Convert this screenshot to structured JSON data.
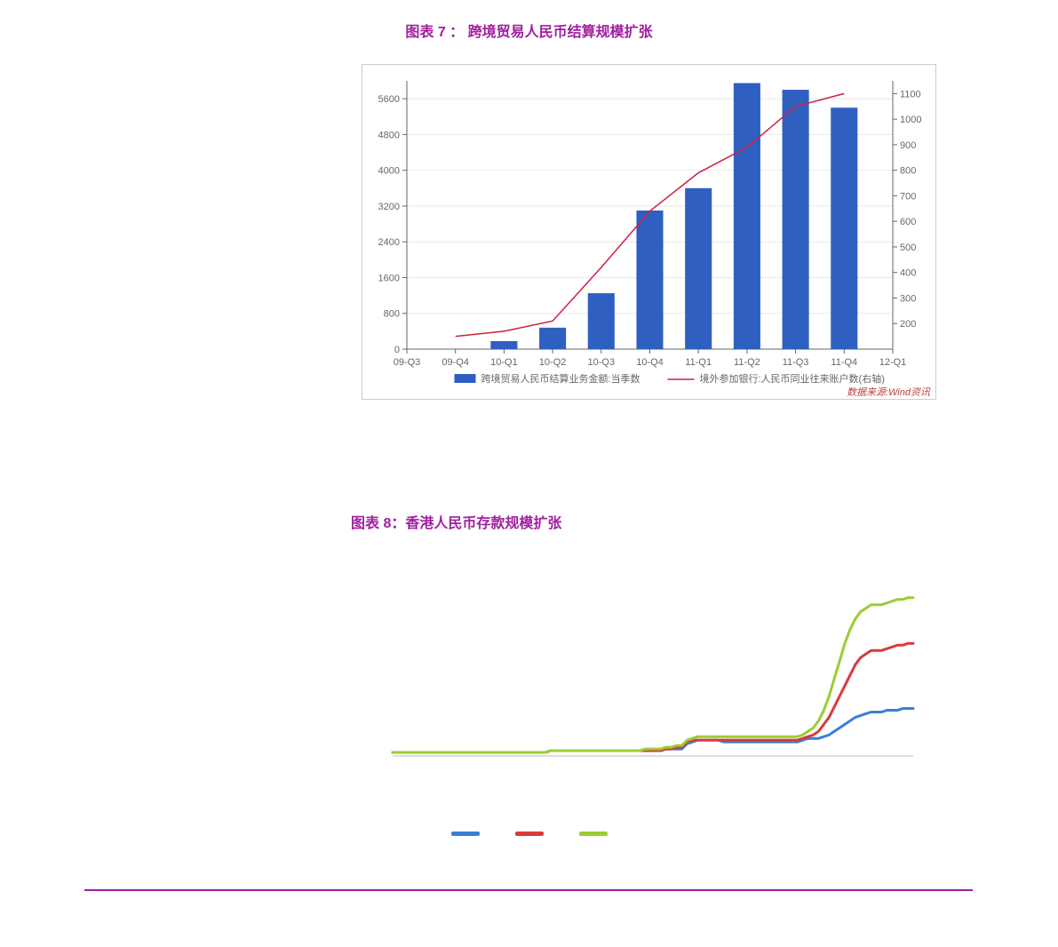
{
  "chart7": {
    "title": "图表 7 ： 跨境贸易人民币结算规模扩张",
    "title_color": "#a020a0",
    "title_fontsize": 16,
    "type": "bar+line",
    "categories": [
      "09-Q3",
      "09-Q4",
      "10-Q1",
      "10-Q2",
      "10-Q3",
      "10-Q4",
      "11-Q1",
      "11-Q2",
      "11-Q3",
      "11-Q4",
      "12-Q1"
    ],
    "bars": {
      "label": "跨境贸易人民币结算业务金额:当季数",
      "color": "#2f5fc0",
      "values": [
        null,
        null,
        180,
        480,
        1250,
        3100,
        3600,
        5950,
        5800,
        5400,
        null
      ],
      "width": 0.55
    },
    "line": {
      "label": "境外参加银行:人民币同业往来账户数(右轴)",
      "color": "#d02040",
      "width": 1.5,
      "values": [
        null,
        150,
        170,
        210,
        420,
        640,
        790,
        890,
        1050,
        1100,
        null
      ]
    },
    "y_left": {
      "min": 0,
      "max": 6000,
      "ticks": [
        0,
        800,
        1600,
        2400,
        3200,
        4000,
        4800,
        5600
      ],
      "grid": true,
      "grid_color": "#e8e8e8"
    },
    "y_right": {
      "min": 100,
      "max": 1150,
      "ticks": [
        200,
        300,
        400,
        500,
        600,
        700,
        800,
        900,
        1000,
        1100
      ]
    },
    "background_color": "#ffffff",
    "border_color": "#cccccc",
    "axis_color": "#666666",
    "source": "数据来源:Wind资讯",
    "source_color": "#c04040"
  },
  "chart8": {
    "title": "图表 8：香港人民币存款规模扩张",
    "title_color": "#a020a0",
    "title_fontsize": 16,
    "type": "line",
    "x_points": 100,
    "series": [
      {
        "label": "",
        "color": "#3a7fd5",
        "width": 3,
        "values": [
          2,
          2,
          2,
          2,
          2,
          2,
          2,
          2,
          2,
          2,
          2,
          2,
          2,
          2,
          2,
          2,
          2,
          2,
          2,
          2,
          2,
          2,
          2,
          2,
          2,
          2,
          2,
          2,
          2,
          2,
          3,
          3,
          3,
          3,
          3,
          3,
          3,
          3,
          3,
          3,
          3,
          3,
          3,
          3,
          3,
          3,
          3,
          3,
          3,
          3,
          3,
          3,
          4,
          4,
          4,
          4,
          7,
          8,
          9,
          9,
          9,
          9,
          9,
          8,
          8,
          8,
          8,
          8,
          8,
          8,
          8,
          8,
          8,
          8,
          8,
          8,
          8,
          8,
          9,
          10,
          10,
          10,
          11,
          12,
          14,
          16,
          18,
          20,
          22,
          23,
          24,
          25,
          25,
          25,
          26,
          26,
          26,
          27,
          27,
          27
        ]
      },
      {
        "label": "",
        "color": "#d93a3a",
        "width": 3,
        "values": [
          2,
          2,
          2,
          2,
          2,
          2,
          2,
          2,
          2,
          2,
          2,
          2,
          2,
          2,
          2,
          2,
          2,
          2,
          2,
          2,
          2,
          2,
          2,
          2,
          2,
          2,
          2,
          2,
          2,
          2,
          3,
          3,
          3,
          3,
          3,
          3,
          3,
          3,
          3,
          3,
          3,
          3,
          3,
          3,
          3,
          3,
          3,
          3,
          3,
          3,
          3,
          3,
          4,
          4,
          5,
          5,
          8,
          9,
          9,
          9,
          9,
          9,
          9,
          9,
          9,
          9,
          9,
          9,
          9,
          9,
          9,
          9,
          9,
          9,
          9,
          9,
          9,
          9,
          10,
          11,
          12,
          14,
          18,
          22,
          28,
          34,
          40,
          46,
          52,
          56,
          58,
          60,
          60,
          60,
          61,
          62,
          63,
          63,
          64,
          64
        ]
      },
      {
        "label": "",
        "color": "#9acd32",
        "width": 3,
        "values": [
          2,
          2,
          2,
          2,
          2,
          2,
          2,
          2,
          2,
          2,
          2,
          2,
          2,
          2,
          2,
          2,
          2,
          2,
          2,
          2,
          2,
          2,
          2,
          2,
          2,
          2,
          2,
          2,
          2,
          2,
          3,
          3,
          3,
          3,
          3,
          3,
          3,
          3,
          3,
          3,
          3,
          3,
          3,
          3,
          3,
          3,
          3,
          3,
          4,
          4,
          4,
          4,
          5,
          5,
          6,
          6,
          9,
          10,
          11,
          11,
          11,
          11,
          11,
          11,
          11,
          11,
          11,
          11,
          11,
          11,
          11,
          11,
          11,
          11,
          11,
          11,
          11,
          11,
          12,
          14,
          16,
          20,
          26,
          34,
          44,
          54,
          64,
          72,
          78,
          82,
          84,
          86,
          86,
          86,
          87,
          88,
          89,
          89,
          90,
          90
        ]
      }
    ],
    "y": {
      "min": 0,
      "max": 100
    },
    "background_color": "#ffffff",
    "legend_colors": [
      "#3a7fd5",
      "#d93a3a",
      "#9acd32"
    ]
  },
  "footer": {
    "rule_color": "#a020a0",
    "rule_width": 2
  }
}
